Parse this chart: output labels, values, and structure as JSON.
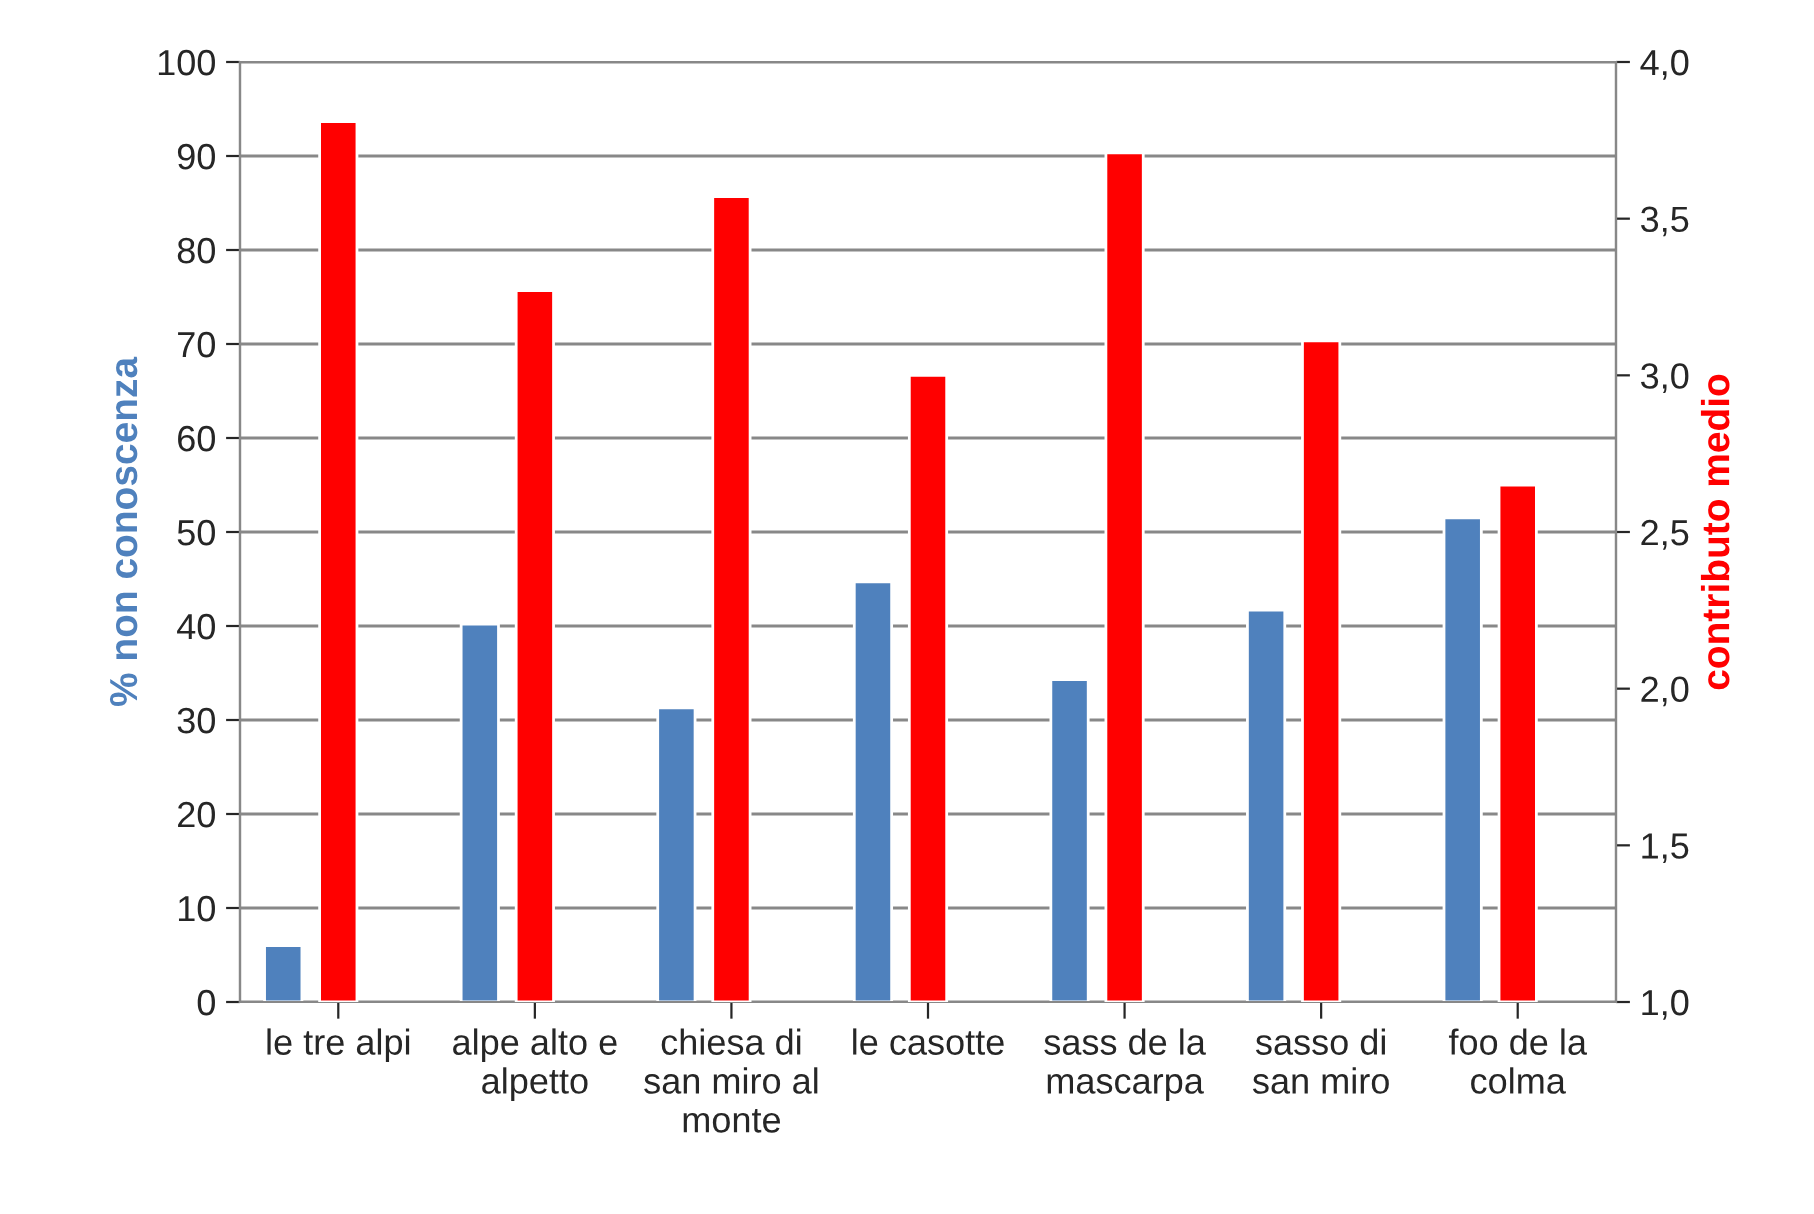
{
  "chart_data": {
    "type": "bar",
    "categories": [
      "le tre alpi",
      "alpe alto e\nalpetto",
      "chiesa di\nsan miro al\nmonte",
      "le casotte",
      "sass de la\nmascarpa",
      "sasso di\nsan miro",
      "foo de la\ncolma"
    ],
    "series": [
      {
        "color": "#4f81bd",
        "values": [
          6.0,
          40.2,
          31.3,
          44.7,
          34.3,
          41.7,
          51.5
        ]
      },
      {
        "color": "#ff0000",
        "axis": "y2",
        "values": [
          3.81,
          3.27,
          3.57,
          3.0,
          3.71,
          3.11,
          2.65
        ]
      }
    ],
    "ylabel": "% non conoscenza",
    "y2label": "contributo medio",
    "ylim": [
      0,
      100
    ],
    "yticks": [
      0,
      10,
      20,
      30,
      40,
      50,
      60,
      70,
      80,
      90,
      100
    ],
    "y2lim": [
      1.0,
      4.0
    ],
    "y2ticks": [
      {
        "value": 1.0,
        "label": "1,0"
      },
      {
        "value": 1.5,
        "label": "1,5"
      },
      {
        "value": 2.0,
        "label": "2,0"
      },
      {
        "value": 2.5,
        "label": "2,5"
      },
      {
        "value": 3.0,
        "label": "3,0"
      },
      {
        "value": 3.5,
        "label": "3,5"
      },
      {
        "value": 4.0,
        "label": "4,0"
      }
    ],
    "grid": "y"
  }
}
